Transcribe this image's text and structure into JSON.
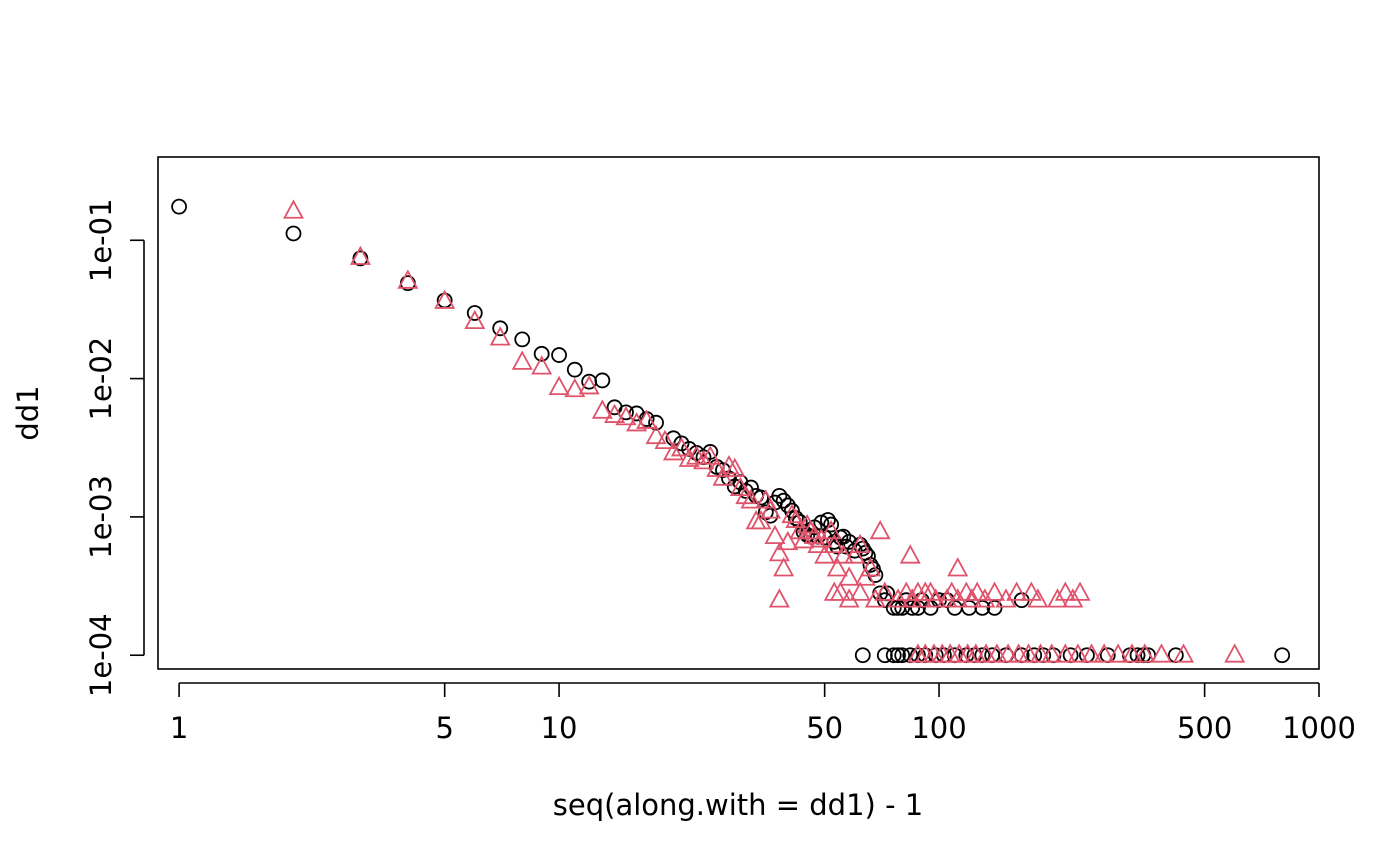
{
  "chart_data": {
    "type": "scatter",
    "title": "",
    "xlabel": "seq(along.with = dd1) - 1",
    "ylabel": "dd1",
    "x_scale": "log",
    "y_scale": "log",
    "xlim": [
      0.88,
      1000
    ],
    "ylim": [
      7.95e-05,
      0.4
    ],
    "grid": false,
    "legend": "none",
    "x_ticks": [
      1,
      5,
      10,
      50,
      100,
      500,
      1000
    ],
    "x_tick_labels": [
      "1",
      "5",
      "10",
      "50",
      "100",
      "500",
      "1000"
    ],
    "y_ticks": [
      0.0001,
      0.001,
      0.01,
      0.1
    ],
    "y_tick_labels": [
      "1e-04",
      "1e-03",
      "1e-02",
      "1e-01"
    ],
    "series": [
      {
        "marker": "circle",
        "color": "#000000",
        "points": [
          [
            1,
            0.175
          ],
          [
            2,
            0.112
          ],
          [
            3,
            0.074
          ],
          [
            4,
            0.049
          ],
          [
            5,
            0.0367
          ],
          [
            6,
            0.0298
          ],
          [
            7,
            0.0231
          ],
          [
            8,
            0.0192
          ],
          [
            9,
            0.0151
          ],
          [
            10,
            0.0148
          ],
          [
            11,
            0.0116
          ],
          [
            12,
            0.0095
          ],
          [
            13,
            0.0097
          ],
          [
            14,
            0.0062
          ],
          [
            15,
            0.0057
          ],
          [
            16,
            0.0056
          ],
          [
            17,
            0.0051
          ],
          [
            18,
            0.0048
          ],
          [
            20,
            0.0037
          ],
          [
            21,
            0.0034
          ],
          [
            22,
            0.0031
          ],
          [
            23,
            0.0029
          ],
          [
            24,
            0.0027
          ],
          [
            25,
            0.00295
          ],
          [
            26,
            0.0023
          ],
          [
            27,
            0.00218
          ],
          [
            28,
            0.0019
          ],
          [
            29,
            0.00166
          ],
          [
            30,
            0.00178
          ],
          [
            31,
            0.00154
          ],
          [
            32,
            0.00163
          ],
          [
            33,
            0.00142
          ],
          [
            34,
            0.00138
          ],
          [
            35,
            0.00108
          ],
          [
            36,
            0.00102
          ],
          [
            37,
            0.00127
          ],
          [
            38,
            0.00142
          ],
          [
            39,
            0.00131
          ],
          [
            40,
            0.00121
          ],
          [
            41,
            0.00111
          ],
          [
            42,
            0.00098
          ],
          [
            43,
            0.00092
          ],
          [
            44,
            0.00078
          ],
          [
            45,
            0.00074
          ],
          [
            46,
            0.00072
          ],
          [
            47,
            0.00084
          ],
          [
            48,
            0.00072
          ],
          [
            49,
            0.00091
          ],
          [
            50,
            0.00071
          ],
          [
            51,
            0.00095
          ],
          [
            52,
            0.00088
          ],
          [
            53,
            0.00066
          ],
          [
            54,
            0.00061
          ],
          [
            55,
            0.00071
          ],
          [
            56,
            0.00072
          ],
          [
            57,
            0.00061
          ],
          [
            58,
            0.00066
          ],
          [
            60,
            0.00057
          ],
          [
            62,
            0.00063
          ],
          [
            63,
            0.00059
          ],
          [
            64,
            0.00055
          ],
          [
            65,
            0.00052
          ],
          [
            66,
            0.00045
          ],
          [
            67,
            0.00042
          ],
          [
            68,
            0.00038
          ],
          [
            70,
            0.00028
          ],
          [
            72,
            0.00025
          ],
          [
            73,
            0.00028
          ],
          [
            76,
            0.00022
          ],
          [
            78,
            0.00022
          ],
          [
            80,
            0.00022
          ],
          [
            82,
            0.00025
          ],
          [
            85,
            0.00022
          ],
          [
            88,
            0.00022
          ],
          [
            90,
            0.00025
          ],
          [
            95,
            0.00022
          ],
          [
            100,
            0.00025
          ],
          [
            105,
            0.00025
          ],
          [
            110,
            0.00022
          ],
          [
            120,
            0.00022
          ],
          [
            130,
            0.00022
          ],
          [
            140,
            0.00022
          ],
          [
            165,
            0.00025
          ],
          [
            63,
            0.0001
          ],
          [
            72,
            0.0001
          ],
          [
            76,
            0.0001
          ],
          [
            78,
            0.0001
          ],
          [
            80,
            0.0001
          ],
          [
            84,
            0.0001
          ],
          [
            88,
            0.0001
          ],
          [
            92,
            0.0001
          ],
          [
            98,
            0.0001
          ],
          [
            103,
            0.0001
          ],
          [
            110,
            0.0001
          ],
          [
            118,
            0.0001
          ],
          [
            124,
            0.0001
          ],
          [
            130,
            0.0001
          ],
          [
            138,
            0.0001
          ],
          [
            150,
            0.0001
          ],
          [
            165,
            0.0001
          ],
          [
            178,
            0.0001
          ],
          [
            188,
            0.0001
          ],
          [
            200,
            0.0001
          ],
          [
            222,
            0.0001
          ],
          [
            245,
            0.0001
          ],
          [
            278,
            0.0001
          ],
          [
            318,
            0.0001
          ],
          [
            333,
            0.0001
          ],
          [
            345,
            0.0001
          ],
          [
            355,
            0.0001
          ],
          [
            420,
            0.0001
          ],
          [
            800,
            0.0001
          ]
        ]
      },
      {
        "marker": "triangle",
        "color": "#DF536B",
        "points": [
          [
            2,
            0.162
          ],
          [
            3,
            0.075
          ],
          [
            4,
            0.0505
          ],
          [
            5,
            0.0361
          ],
          [
            6,
            0.0258
          ],
          [
            7,
            0.0196
          ],
          [
            8,
            0.0131
          ],
          [
            9,
            0.0121
          ],
          [
            10,
            0.0086
          ],
          [
            11,
            0.0083
          ],
          [
            12,
            0.0087
          ],
          [
            13,
            0.0058
          ],
          [
            14,
            0.0054
          ],
          [
            15,
            0.0052
          ],
          [
            16,
            0.0047
          ],
          [
            17,
            0.0049
          ],
          [
            18,
            0.0038
          ],
          [
            19,
            0.0035
          ],
          [
            20,
            0.0029
          ],
          [
            21,
            0.0031
          ],
          [
            22,
            0.0026
          ],
          [
            23,
            0.0027
          ],
          [
            24,
            0.0025
          ],
          [
            25,
            0.0027
          ],
          [
            26,
            0.0022
          ],
          [
            27,
            0.0019
          ],
          [
            28,
            0.0023
          ],
          [
            29,
            0.0022
          ],
          [
            30,
            0.0016
          ],
          [
            31,
            0.0014
          ],
          [
            32,
            0.0013
          ],
          [
            33,
            0.00092
          ],
          [
            34,
            0.00092
          ],
          [
            35,
            0.0013
          ],
          [
            36,
            0.0011
          ],
          [
            37,
            0.00072
          ],
          [
            38,
            0.00054
          ],
          [
            39,
            0.00042
          ],
          [
            40,
            0.00065
          ],
          [
            41,
            0.00102
          ],
          [
            42,
            0.00094
          ],
          [
            43,
            0.00078
          ],
          [
            44,
            0.00067
          ],
          [
            45,
            0.00086
          ],
          [
            46,
            0.00078
          ],
          [
            47,
            0.00072
          ],
          [
            48,
            0.00062
          ],
          [
            49,
            0.00068
          ],
          [
            50,
            0.00052
          ],
          [
            52,
            0.00078
          ],
          [
            53,
            0.00062
          ],
          [
            54,
            0.00042
          ],
          [
            56,
            0.00052
          ],
          [
            58,
            0.00036
          ],
          [
            60,
            0.00052
          ],
          [
            62,
            0.00062
          ],
          [
            64,
            0.00036
          ],
          [
            66,
            0.00042
          ],
          [
            70,
            0.00078
          ],
          [
            53,
            0.00028
          ],
          [
            55,
            0.00028
          ],
          [
            58,
            0.00025
          ],
          [
            62,
            0.00028
          ],
          [
            68,
            0.00025
          ],
          [
            72,
            0.00028
          ],
          [
            78,
            0.00025
          ],
          [
            82,
            0.00028
          ],
          [
            85,
            0.00025
          ],
          [
            88,
            0.00028
          ],
          [
            90,
            0.00025
          ],
          [
            92,
            0.00028
          ],
          [
            95,
            0.00028
          ],
          [
            98,
            0.00025
          ],
          [
            105,
            0.00025
          ],
          [
            108,
            0.00028
          ],
          [
            112,
            0.00025
          ],
          [
            118,
            0.00028
          ],
          [
            122,
            0.00025
          ],
          [
            126,
            0.00028
          ],
          [
            132,
            0.00025
          ],
          [
            140,
            0.00028
          ],
          [
            150,
            0.00025
          ],
          [
            160,
            0.00028
          ],
          [
            175,
            0.00028
          ],
          [
            182,
            0.00025
          ],
          [
            205,
            0.00025
          ],
          [
            215,
            0.00028
          ],
          [
            225,
            0.00025
          ],
          [
            235,
            0.00028
          ],
          [
            84,
            0.00052
          ],
          [
            112,
            0.00042
          ],
          [
            38,
            0.00025
          ],
          [
            88,
            0.0001
          ],
          [
            92,
            0.0001
          ],
          [
            97,
            0.0001
          ],
          [
            102,
            0.0001
          ],
          [
            107,
            0.0001
          ],
          [
            113,
            0.0001
          ],
          [
            119,
            0.0001
          ],
          [
            125,
            0.0001
          ],
          [
            133,
            0.0001
          ],
          [
            142,
            0.0001
          ],
          [
            152,
            0.0001
          ],
          [
            162,
            0.0001
          ],
          [
            172,
            0.0001
          ],
          [
            185,
            0.0001
          ],
          [
            198,
            0.0001
          ],
          [
            215,
            0.0001
          ],
          [
            232,
            0.0001
          ],
          [
            252,
            0.0001
          ],
          [
            272,
            0.0001
          ],
          [
            296,
            0.0001
          ],
          [
            322,
            0.0001
          ],
          [
            348,
            0.0001
          ],
          [
            385,
            0.0001
          ],
          [
            440,
            0.0001
          ],
          [
            600,
            0.0001
          ]
        ]
      }
    ]
  }
}
